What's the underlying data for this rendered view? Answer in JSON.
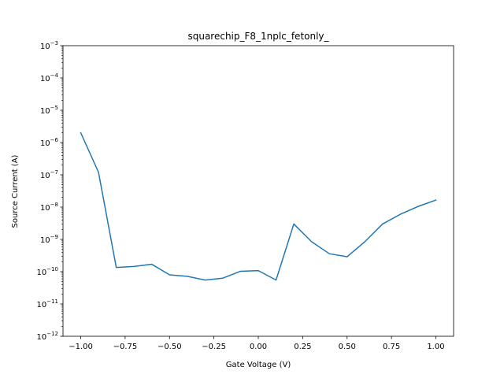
{
  "chart_data": {
    "type": "line",
    "title": "squarechip_F8_1nplc_fetonly_",
    "xlabel": "Gate Voltage (V)",
    "ylabel": "Source Current (A)",
    "xlim": [
      -1.1,
      1.1
    ],
    "ylim": [
      1e-12,
      0.001
    ],
    "yscale": "log",
    "grid": false,
    "x_ticks": [
      -1.0,
      -0.75,
      -0.5,
      -0.25,
      0.0,
      0.25,
      0.5,
      0.75,
      1.0
    ],
    "x_tick_labels": [
      "−1.00",
      "−0.75",
      "−0.50",
      "−0.25",
      "0.00",
      "0.25",
      "0.50",
      "0.75",
      "1.00"
    ],
    "y_tick_exponents": [
      -12,
      -11,
      -10,
      -9,
      -8,
      -7,
      -6,
      -5,
      -4,
      -3
    ],
    "series": [
      {
        "color": "#1f77b4",
        "x": [
          -1.0,
          -0.9,
          -0.8,
          -0.7,
          -0.6,
          -0.5,
          -0.4,
          -0.3,
          -0.2,
          -0.1,
          0.0,
          0.1,
          0.2,
          0.3,
          0.4,
          0.5,
          0.6,
          0.7,
          0.8,
          0.9,
          1.0
        ],
        "y": [
          2e-06,
          1.2e-07,
          1.35e-10,
          1.45e-10,
          1.7e-10,
          8e-11,
          7.2e-11,
          5.5e-11,
          6.3e-11,
          1.03e-10,
          1.08e-10,
          5.5e-11,
          3e-09,
          8.5e-10,
          3.6e-10,
          2.9e-10,
          8.5e-10,
          3e-09,
          6e-09,
          1.05e-08,
          1.65e-08
        ]
      }
    ]
  }
}
